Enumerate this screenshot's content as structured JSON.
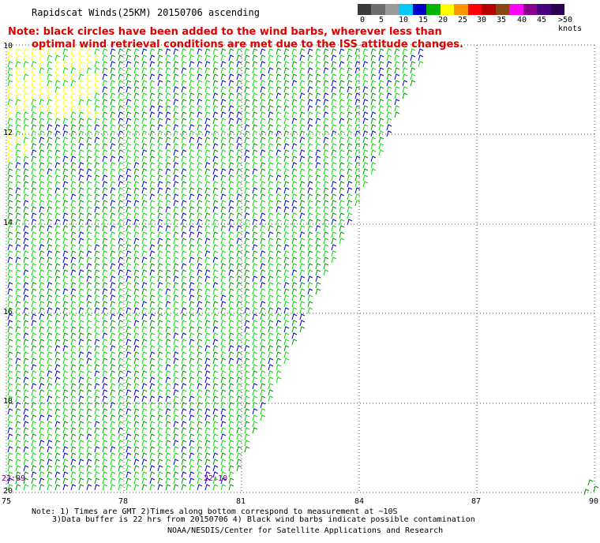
{
  "title": "Rapidscat Winds(25KM) 20150706 ascending",
  "note": {
    "line1": "Note: black circles have been added to the wind barbs, wherever less than",
    "line2": "optimal wind retrieval conditions are met due to the ISS attitude changes."
  },
  "legend": {
    "labels": [
      "0",
      "5",
      "10",
      "15",
      "20",
      "25",
      "30",
      "35",
      "40",
      "45",
      ">50 knots"
    ],
    "colors": [
      "#3a3a3a",
      "#6e6e6e",
      "#9a9a9a",
      "#00c8ff",
      "#0000c8",
      "#00b400",
      "#ffff00",
      "#ff9600",
      "#ff0000",
      "#b40000",
      "#8b4513",
      "#ff00ff",
      "#8b008b",
      "#4b0082",
      "#2b0050"
    ]
  },
  "axes": {
    "y_labels": [
      "10",
      "12",
      "14",
      "16",
      "18",
      "20"
    ],
    "x_labels": [
      "75",
      "78",
      "81",
      "84",
      "87",
      "90"
    ]
  },
  "times": [
    "22:09",
    "22:10"
  ],
  "footer": {
    "line1": "Note: 1) Times are GMT 2)Times along bottom correspond to measurement at ~10S",
    "line2": "3)Data buffer is 22 hrs from 20150706 4) Black wind barbs indicate possible contamination",
    "line3": "NOAA/NESDIS/Center for Satellite Applications and Research"
  },
  "colors": {
    "light": "#00e000",
    "mid": "#009a00",
    "strong": "#0000cc",
    "calm": "#ffff00",
    "note": "#e00000",
    "time": "#6a0080"
  }
}
